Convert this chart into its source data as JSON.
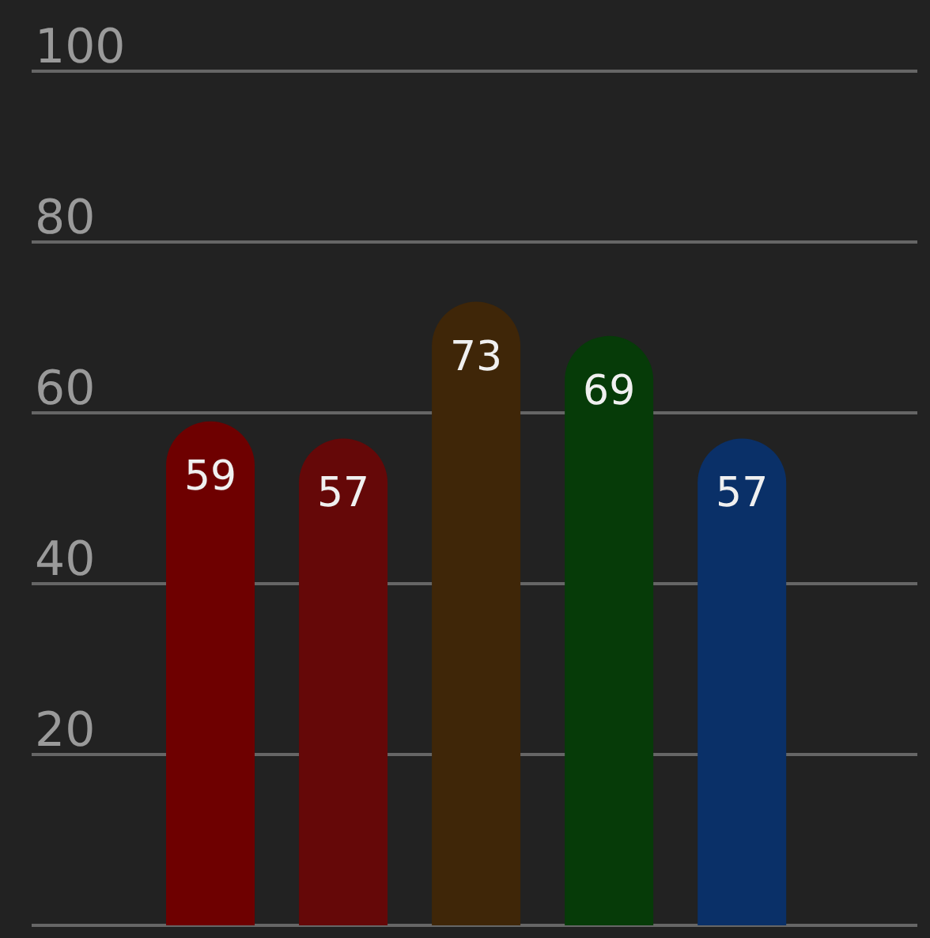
{
  "chart_data": {
    "type": "bar",
    "categories": [
      null,
      null,
      null,
      null,
      null
    ],
    "values": [
      59,
      57,
      73,
      69,
      57
    ],
    "colors": [
      "#6e0000",
      "#650808",
      "#3f2608",
      "#063b08",
      "#0a3068"
    ],
    "ylim": [
      0,
      100
    ],
    "yticks": [
      {
        "value": 0,
        "label": null
      },
      20,
      40,
      60,
      80,
      100
    ],
    "grid": "y",
    "data_labels": true
  }
}
